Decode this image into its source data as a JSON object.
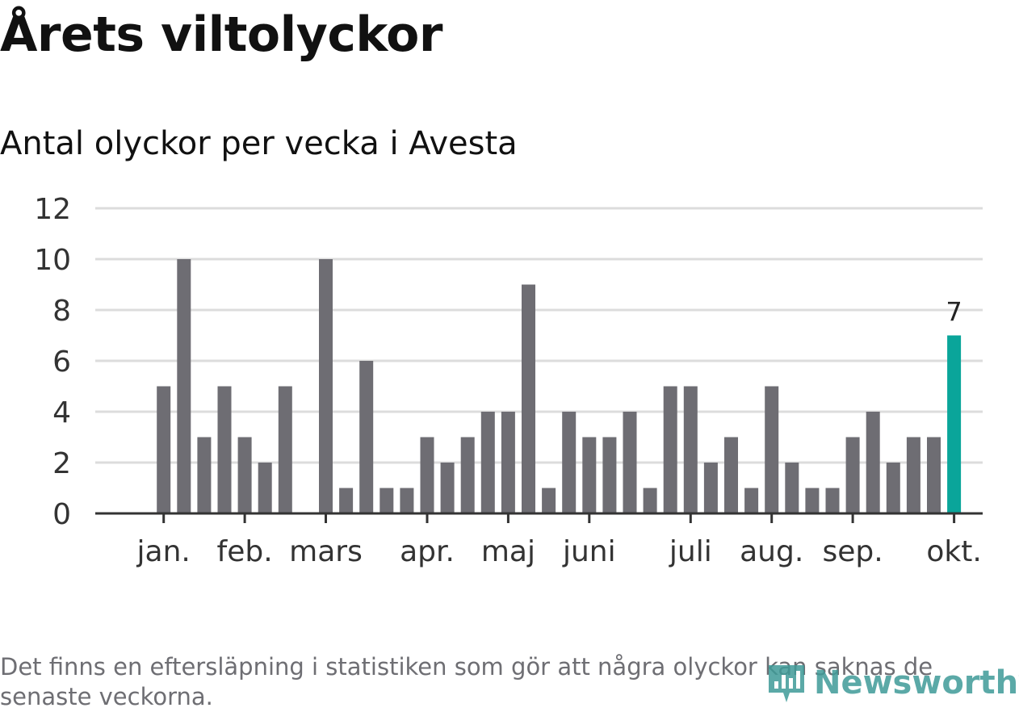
{
  "title": "Årets viltolyckor",
  "subtitle": "Antal olyckor per vecka i Avesta",
  "footnote": "Det finns en eftersläpning i statistiken som gör att några olyckor kan saknas de senaste veckorna.",
  "brand": "Newsworthy",
  "colors": {
    "bar": "#6e6d73",
    "highlight": "#0aa59a",
    "grid": "#dcdcdc",
    "axis": "#333333",
    "text": "#333333",
    "brand": "#3f9b98"
  },
  "chart_data": {
    "type": "bar",
    "title": "Antal olyckor per vecka i Avesta",
    "xlabel": "",
    "ylabel": "",
    "ylim": [
      0,
      12
    ],
    "yticks": [
      0,
      2,
      4,
      6,
      8,
      10,
      12
    ],
    "grid": true,
    "values": [
      null,
      null,
      5,
      10,
      3,
      5,
      3,
      2,
      5,
      0,
      10,
      1,
      6,
      1,
      1,
      3,
      2,
      3,
      4,
      4,
      9,
      1,
      4,
      3,
      3,
      4,
      1,
      5,
      5,
      2,
      3,
      1,
      5,
      2,
      1,
      1,
      3,
      4,
      2,
      3,
      3,
      7
    ],
    "month_ticks": [
      {
        "label": "jan.",
        "index": 2
      },
      {
        "label": "feb.",
        "index": 6
      },
      {
        "label": "mars",
        "index": 10
      },
      {
        "label": "apr.",
        "index": 15
      },
      {
        "label": "maj",
        "index": 19
      },
      {
        "label": "juni",
        "index": 23
      },
      {
        "label": "juli",
        "index": 28
      },
      {
        "label": "aug.",
        "index": 32
      },
      {
        "label": "sep.",
        "index": 36
      },
      {
        "label": "okt.",
        "index": 41
      }
    ],
    "highlight": {
      "index": 41,
      "label": "7"
    }
  }
}
